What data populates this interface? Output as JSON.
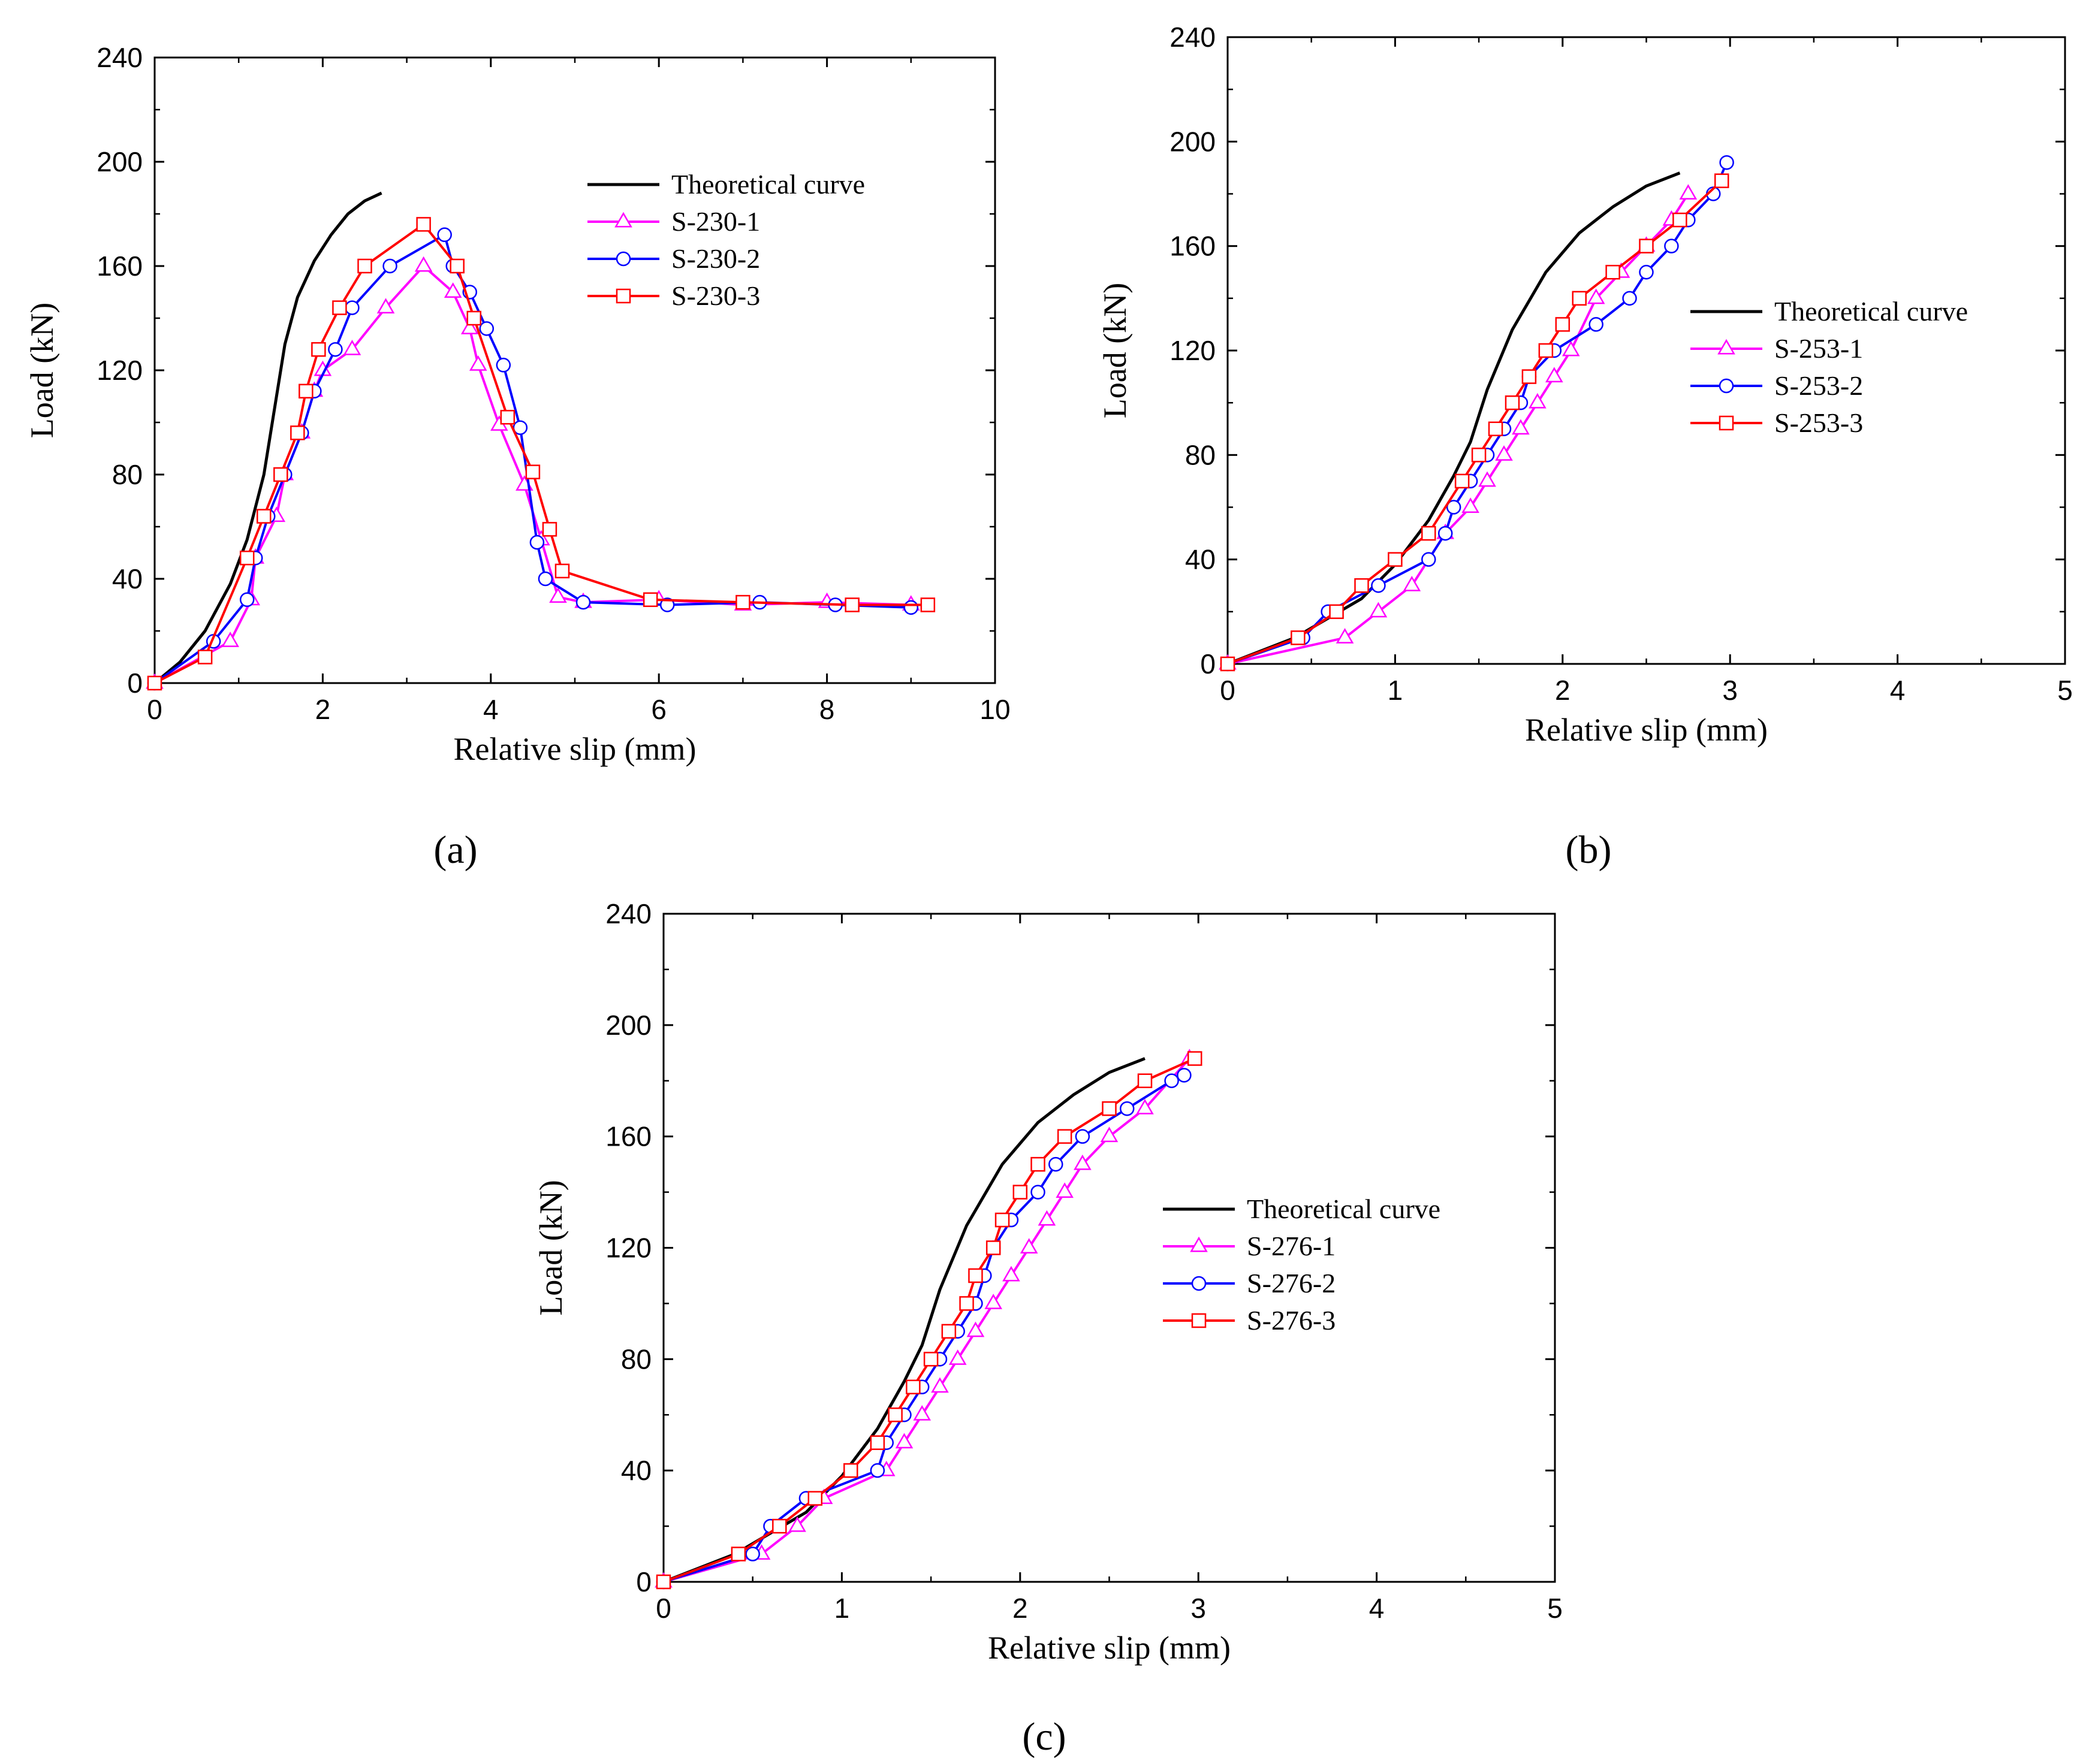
{
  "chart_data": [
    {
      "type": "line",
      "panel_label": "(a)",
      "xlabel": "Relative slip (mm)",
      "ylabel": "Load (kN)",
      "xlim": [
        0,
        10
      ],
      "ylim": [
        0,
        240
      ],
      "xticks": [
        0,
        2,
        4,
        6,
        8,
        10
      ],
      "yticks": [
        0,
        40,
        80,
        120,
        160,
        200,
        240
      ],
      "legend_position": "top-right",
      "series": [
        {
          "name": "Theoretical curve",
          "color": "#000000",
          "marker": "none",
          "x": [
            0,
            0.3,
            0.6,
            0.9,
            1.1,
            1.3,
            1.45,
            1.55,
            1.7,
            1.9,
            2.1,
            2.3,
            2.5,
            2.7
          ],
          "y": [
            0,
            8,
            20,
            38,
            55,
            80,
            110,
            130,
            148,
            162,
            172,
            180,
            185,
            188
          ]
        },
        {
          "name": "S-230-1",
          "color": "#ff00ff",
          "marker": "triangle",
          "x": [
            0,
            0.9,
            1.15,
            1.2,
            1.45,
            1.55,
            1.75,
            1.9,
            2.0,
            2.35,
            2.75,
            3.2,
            3.55,
            3.75,
            3.85,
            4.1,
            4.4,
            4.6,
            4.8,
            5.1,
            6.0,
            7.0,
            8.0,
            9.0
          ],
          "y": [
            0,
            16,
            32,
            48,
            64,
            80,
            96,
            112,
            120,
            128,
            144,
            160,
            150,
            136,
            122,
            99,
            76,
            55,
            33,
            31,
            32,
            30,
            31,
            30
          ]
        },
        {
          "name": "S-230-2",
          "color": "#0000ff",
          "marker": "circle",
          "x": [
            0,
            0.7,
            1.1,
            1.2,
            1.35,
            1.55,
            1.75,
            1.9,
            2.15,
            2.35,
            2.8,
            3.45,
            3.55,
            3.75,
            3.95,
            4.15,
            4.35,
            4.55,
            4.65,
            5.1,
            6.1,
            7.2,
            8.1,
            9.0
          ],
          "y": [
            0,
            16,
            32,
            48,
            64,
            80,
            96,
            112,
            128,
            144,
            160,
            172,
            160,
            150,
            136,
            122,
            98,
            54,
            40,
            31,
            30,
            31,
            30,
            29
          ]
        },
        {
          "name": "S-230-3",
          "color": "#ff0000",
          "marker": "square",
          "x": [
            0,
            0.6,
            1.1,
            1.3,
            1.5,
            1.7,
            1.8,
            1.95,
            2.2,
            2.5,
            3.2,
            3.6,
            3.8,
            4.2,
            4.5,
            4.7,
            4.85,
            5.9,
            7.0,
            8.3,
            9.2
          ],
          "y": [
            0,
            10,
            48,
            64,
            80,
            96,
            112,
            128,
            144,
            160,
            176,
            160,
            140,
            102,
            81,
            59,
            43,
            32,
            31,
            30,
            30
          ]
        }
      ]
    },
    {
      "type": "line",
      "panel_label": "(b)",
      "xlabel": "Relative slip (mm)",
      "ylabel": "Load (kN)",
      "xlim": [
        0,
        5
      ],
      "ylim": [
        0,
        240
      ],
      "xticks": [
        0,
        1,
        2,
        3,
        4,
        5
      ],
      "yticks": [
        0,
        40,
        80,
        120,
        160,
        200,
        240
      ],
      "legend_position": "center-right",
      "series": [
        {
          "name": "Theoretical curve",
          "color": "#000000",
          "marker": "none",
          "x": [
            0,
            0.4,
            0.8,
            1.0,
            1.2,
            1.35,
            1.45,
            1.55,
            1.7,
            1.9,
            2.1,
            2.3,
            2.5,
            2.7
          ],
          "y": [
            0,
            10,
            25,
            38,
            55,
            72,
            85,
            105,
            128,
            150,
            165,
            175,
            183,
            188
          ]
        },
        {
          "name": "S-253-1",
          "color": "#ff00ff",
          "marker": "triangle",
          "x": [
            0,
            0.7,
            0.9,
            1.1,
            1.3,
            1.45,
            1.55,
            1.65,
            1.75,
            1.85,
            1.95,
            2.05,
            2.2,
            2.35,
            2.5,
            2.65,
            2.75
          ],
          "y": [
            0,
            10,
            20,
            30,
            50,
            60,
            70,
            80,
            90,
            100,
            110,
            120,
            140,
            150,
            160,
            170,
            180
          ]
        },
        {
          "name": "S-253-2",
          "color": "#0000ff",
          "marker": "circle",
          "x": [
            0,
            0.45,
            0.6,
            0.9,
            1.2,
            1.3,
            1.35,
            1.45,
            1.55,
            1.65,
            1.75,
            1.8,
            1.95,
            2.2,
            2.4,
            2.5,
            2.65,
            2.75,
            2.9,
            2.98
          ],
          "y": [
            0,
            10,
            20,
            30,
            40,
            50,
            60,
            70,
            80,
            90,
            100,
            110,
            120,
            130,
            140,
            150,
            160,
            170,
            180,
            192
          ]
        },
        {
          "name": "S-253-3",
          "color": "#ff0000",
          "marker": "square",
          "x": [
            0,
            0.42,
            0.65,
            0.8,
            1.0,
            1.2,
            1.4,
            1.5,
            1.6,
            1.7,
            1.8,
            1.9,
            2.0,
            2.1,
            2.3,
            2.5,
            2.7,
            2.95
          ],
          "y": [
            0,
            10,
            20,
            30,
            40,
            50,
            70,
            80,
            90,
            100,
            110,
            120,
            130,
            140,
            150,
            160,
            170,
            185
          ]
        }
      ]
    },
    {
      "type": "line",
      "panel_label": "(c)",
      "xlabel": "Relative slip (mm)",
      "ylabel": "Load (kN)",
      "xlim": [
        0,
        5
      ],
      "ylim": [
        0,
        240
      ],
      "xticks": [
        0,
        1,
        2,
        3,
        4,
        5
      ],
      "yticks": [
        0,
        40,
        80,
        120,
        160,
        200,
        240
      ],
      "legend_position": "center-right",
      "series": [
        {
          "name": "Theoretical curve",
          "color": "#000000",
          "marker": "none",
          "x": [
            0,
            0.4,
            0.8,
            1.0,
            1.2,
            1.35,
            1.45,
            1.55,
            1.7,
            1.9,
            2.1,
            2.3,
            2.5,
            2.7
          ],
          "y": [
            0,
            10,
            25,
            38,
            55,
            72,
            85,
            105,
            128,
            150,
            165,
            175,
            183,
            188
          ]
        },
        {
          "name": "S-276-1",
          "color": "#ff00ff",
          "marker": "triangle",
          "x": [
            0,
            0.55,
            0.75,
            0.9,
            1.25,
            1.35,
            1.45,
            1.55,
            1.65,
            1.75,
            1.85,
            1.95,
            2.05,
            2.15,
            2.25,
            2.35,
            2.5,
            2.7,
            2.95
          ],
          "y": [
            0,
            10,
            20,
            30,
            40,
            50,
            60,
            70,
            80,
            90,
            100,
            110,
            120,
            130,
            140,
            150,
            160,
            170,
            188
          ]
        },
        {
          "name": "S-276-2",
          "color": "#0000ff",
          "marker": "circle",
          "x": [
            0,
            0.5,
            0.6,
            0.8,
            1.2,
            1.25,
            1.35,
            1.45,
            1.55,
            1.65,
            1.75,
            1.8,
            1.85,
            1.95,
            2.1,
            2.2,
            2.35,
            2.6,
            2.85,
            2.92
          ],
          "y": [
            0,
            10,
            20,
            30,
            40,
            50,
            60,
            70,
            80,
            90,
            100,
            110,
            120,
            130,
            140,
            150,
            160,
            170,
            180,
            182
          ]
        },
        {
          "name": "S-276-3",
          "color": "#ff0000",
          "marker": "square",
          "x": [
            0,
            0.42,
            0.65,
            0.85,
            1.05,
            1.2,
            1.3,
            1.4,
            1.5,
            1.6,
            1.7,
            1.75,
            1.85,
            1.9,
            2.0,
            2.1,
            2.25,
            2.5,
            2.7,
            2.98
          ],
          "y": [
            0,
            10,
            20,
            30,
            40,
            50,
            60,
            70,
            80,
            90,
            100,
            110,
            120,
            130,
            140,
            150,
            160,
            170,
            180,
            188
          ]
        }
      ]
    }
  ]
}
